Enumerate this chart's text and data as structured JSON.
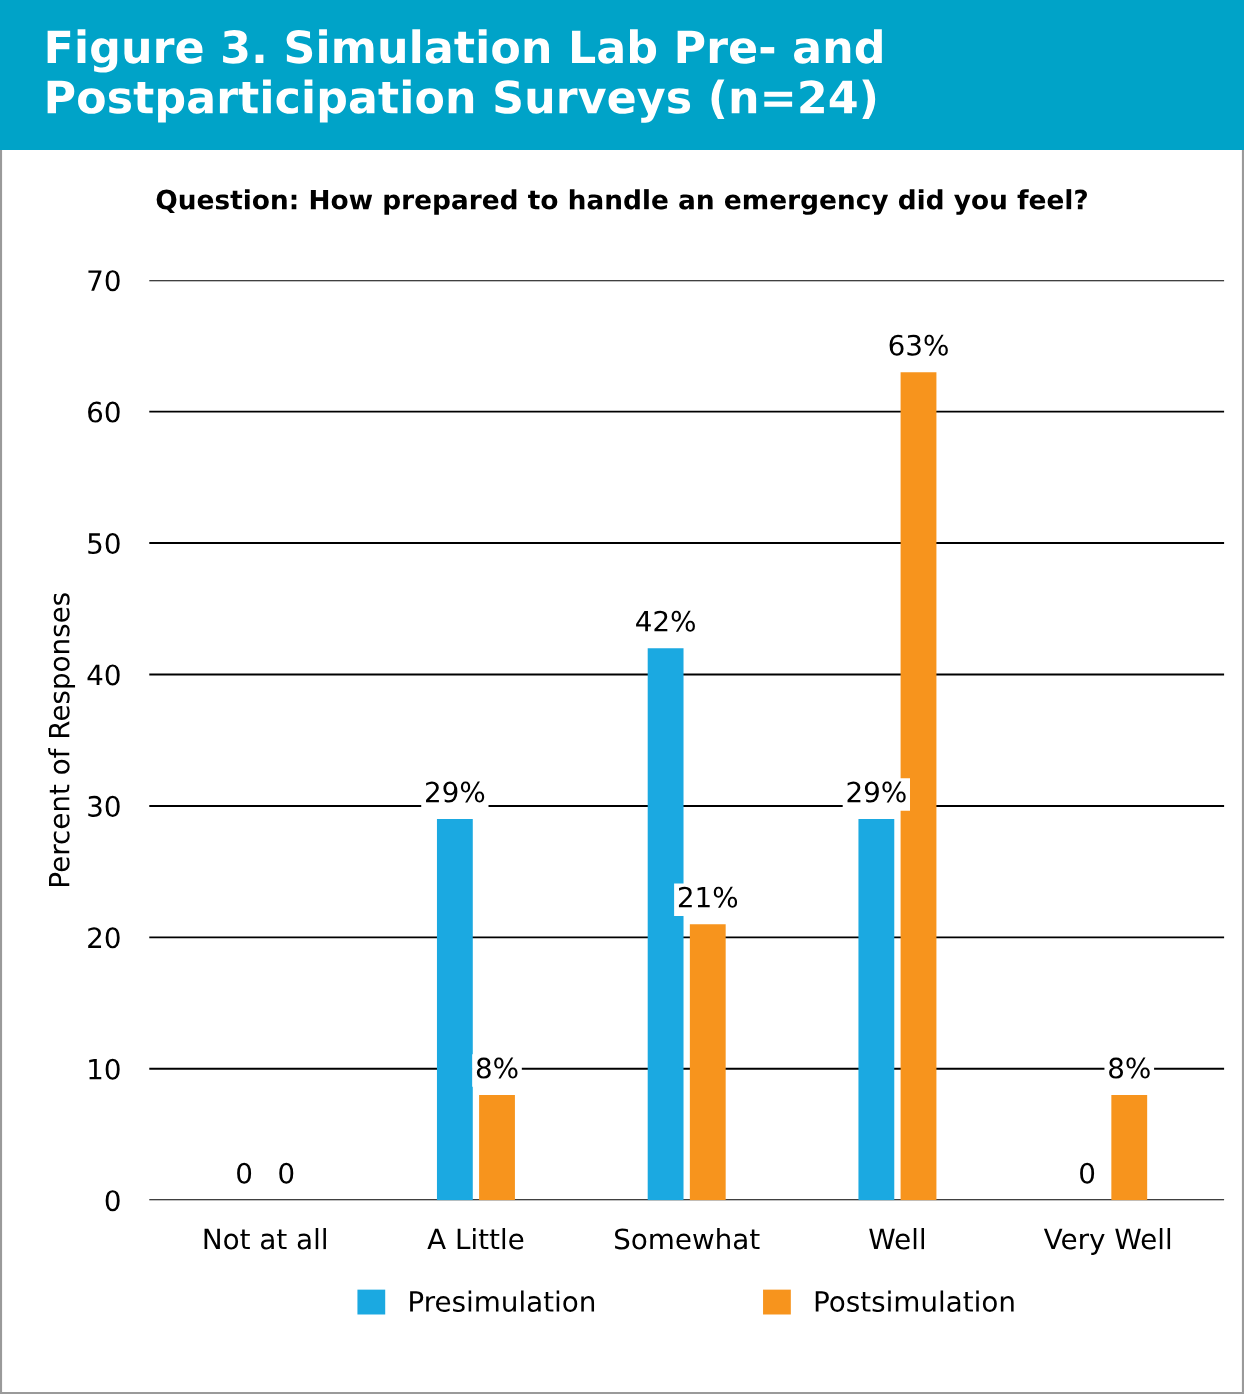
{
  "chart_data": {
    "type": "bar",
    "title": "Figure 3. Simulation Lab Pre- and Postparticipation Surveys (n=24)",
    "subtitle": "Question: How prepared to handle an emergency did you feel?",
    "ylabel": "Percent of Responses",
    "categories": [
      "Not at all",
      "A Little",
      "Somewhat",
      "Well",
      "Very Well"
    ],
    "series": [
      {
        "name": "Presimulation",
        "color": "#1ba9e1",
        "values": [
          0,
          29,
          42,
          29,
          0
        ],
        "value_labels": [
          "0",
          "29%",
          "42%",
          "29%",
          "0"
        ]
      },
      {
        "name": "Postsimulation",
        "color": "#f7941d",
        "values": [
          0,
          8,
          21,
          63,
          8
        ],
        "value_labels": [
          "0",
          "8%",
          "21%",
          "63%",
          "8%"
        ]
      }
    ],
    "ylim": [
      0,
      70
    ],
    "yticks": [
      0,
      10,
      20,
      30,
      40,
      50,
      60,
      70
    ],
    "grid": "y",
    "legend": "bottom"
  }
}
